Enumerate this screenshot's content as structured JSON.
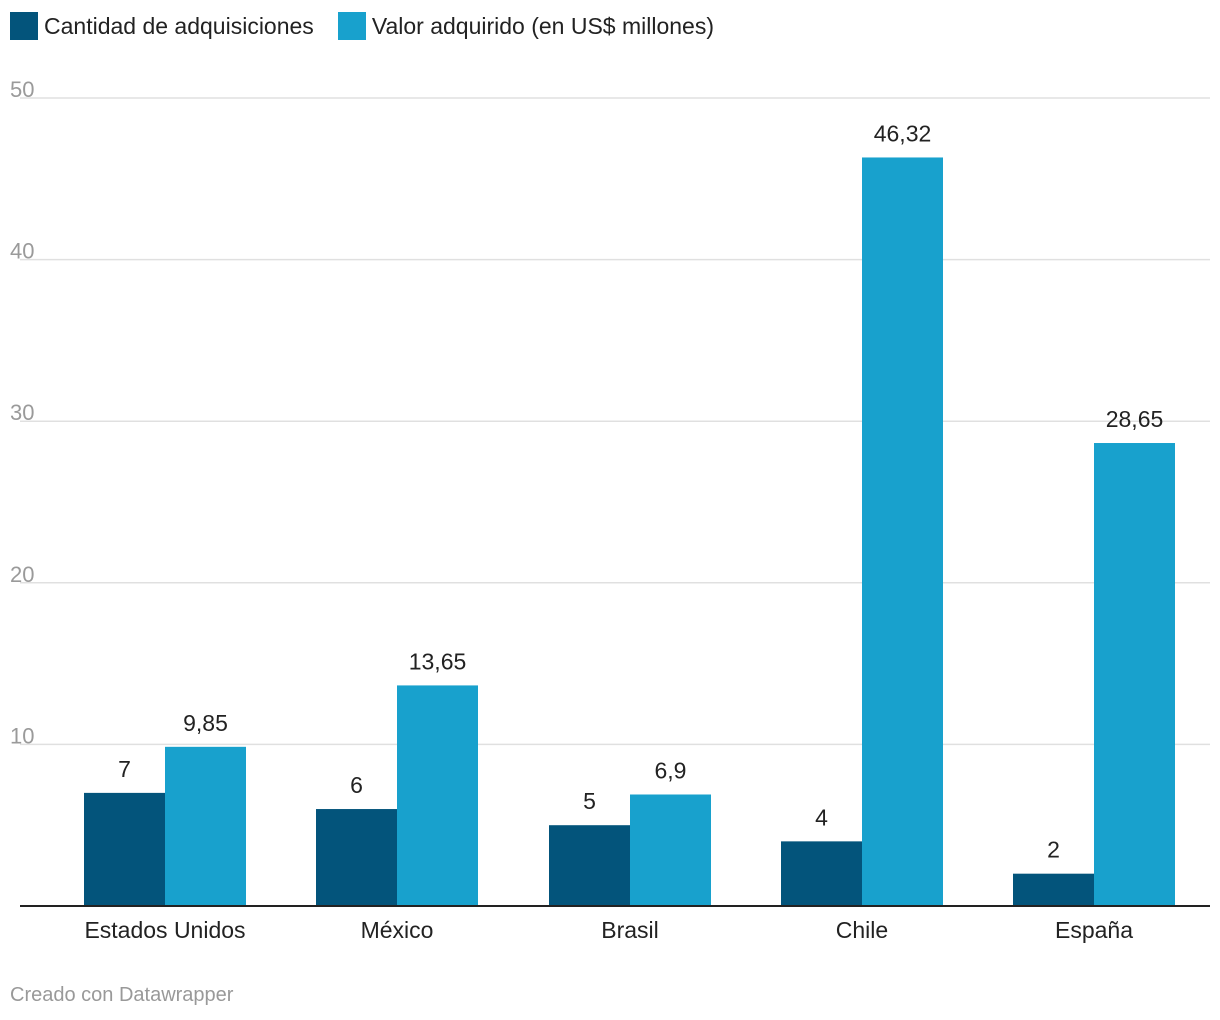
{
  "chart_data": {
    "type": "bar",
    "categories": [
      "Estados Unidos",
      "México",
      "Brasil",
      "Chile",
      "España"
    ],
    "series": [
      {
        "name": "Cantidad de adquisiciones",
        "color": "#03547b",
        "values": [
          7,
          6,
          5,
          4,
          2
        ],
        "labels": [
          "7",
          "6",
          "5",
          "4",
          "2"
        ]
      },
      {
        "name": "Valor adquirido (en US$ millones)",
        "color": "#18a1cd",
        "values": [
          9.85,
          13.65,
          6.9,
          46.32,
          28.65
        ],
        "labels": [
          "9,85",
          "13,65",
          "6,9",
          "46,32",
          "28,65"
        ]
      }
    ],
    "yticks": [
      10,
      20,
      30,
      40,
      50
    ],
    "ylim": [
      0,
      50
    ],
    "grid": true,
    "legend_position": "top-left"
  },
  "footer": {
    "credit": "Creado con Datawrapper"
  }
}
